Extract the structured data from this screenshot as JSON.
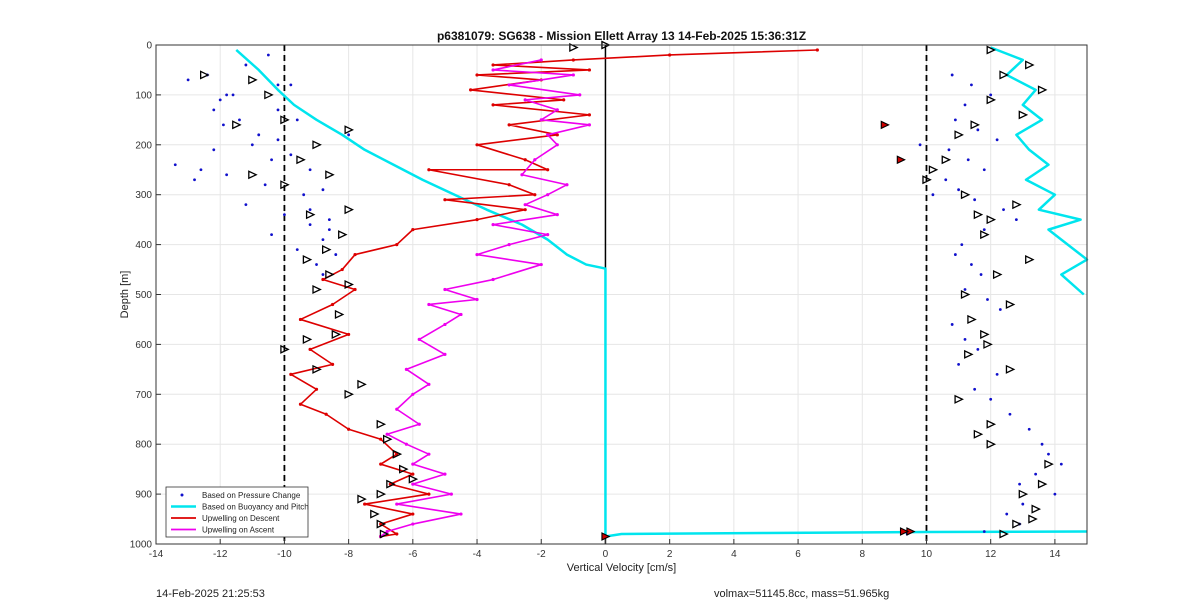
{
  "chart_data": {
    "type": "scatter",
    "title": "p6381079: SG638 - Mission Ellett Array 13 14-Feb-2025 15:36:31Z",
    "xlabel": "Vertical Velocity [cm/s]",
    "ylabel": "Depth [m]",
    "xlim": [
      -14,
      15
    ],
    "ylim": [
      0,
      1000
    ],
    "y_reversed": true,
    "grid": true,
    "x_ticks": [
      -14,
      -12,
      -10,
      -8,
      -6,
      -4,
      -2,
      0,
      2,
      4,
      6,
      8,
      10,
      12,
      14
    ],
    "y_ticks": [
      0,
      100,
      200,
      300,
      400,
      500,
      600,
      700,
      800,
      900,
      1000
    ],
    "reference_lines": {
      "dashed_x": [
        -10,
        10
      ],
      "solid_x": [
        0
      ]
    },
    "legend_position": "bottom-left",
    "legend": [
      "Based on Pressure Change",
      "Based on Buoyancy and Pitch",
      "Upwelling on Descent",
      "Upwelling on Ascent"
    ],
    "series": [
      {
        "name": "Based on Buoyancy and Pitch",
        "color": "#00e5ee",
        "style": "line",
        "x": [
          -11.5,
          -10.8,
          -10.2,
          -9.7,
          -9.0,
          -8.2,
          -7.5,
          -6.6,
          -5.7,
          -4.7,
          -3.7,
          -2.6,
          -1.8,
          -1.2,
          -0.6,
          0,
          0,
          0,
          0,
          0.5,
          5,
          10,
          15
        ],
        "y": [
          10,
          50,
          90,
          120,
          150,
          180,
          210,
          240,
          270,
          300,
          330,
          360,
          390,
          420,
          440,
          448,
          600,
          800,
          985,
          980,
          978,
          976,
          975
        ]
      },
      {
        "name": "Based on Buoyancy and Pitch (ascent)",
        "color": "#00e5ee",
        "style": "line",
        "x": [
          12.0,
          13.0,
          12.5,
          13.4,
          13.0,
          13.6,
          12.8,
          13.2,
          13.8,
          13.1,
          14.0,
          13.5,
          14.8,
          13.8,
          14.4,
          15.0,
          14.2,
          14.9
        ],
        "y": [
          5,
          30,
          60,
          90,
          120,
          150,
          180,
          210,
          240,
          270,
          300,
          330,
          350,
          370,
          400,
          430,
          460,
          500
        ]
      },
      {
        "name": "Upwelling on Descent",
        "color": "#dd0000",
        "style": "line-dots",
        "x": [
          6.6,
          2.0,
          -1.0,
          -3.5,
          -0.5,
          -4.0,
          -2.0,
          -4.2,
          -1.3,
          -3.5,
          -0.5,
          -3.0,
          -1.5,
          -4.0,
          -2.5,
          -1.8,
          -5.5,
          -3.0,
          -2.2,
          -5.0,
          -2.5,
          -4.0,
          -6.0,
          -6.5,
          -7.8,
          -8.2,
          -8.8,
          -7.8,
          -8.5,
          -9.5,
          -8.0,
          -9.2,
          -8.5,
          -9.8,
          -9.0,
          -9.5,
          -8.7,
          -8.0,
          -7.0,
          -6.5,
          -7.0,
          -6.0,
          -6.7,
          -5.5,
          -7.5,
          -6.0,
          -7.0,
          -6.5,
          -7.0
        ],
        "y": [
          10,
          20,
          30,
          40,
          50,
          60,
          70,
          90,
          110,
          120,
          140,
          160,
          180,
          200,
          230,
          250,
          250,
          280,
          300,
          310,
          330,
          350,
          370,
          400,
          420,
          450,
          470,
          490,
          520,
          550,
          580,
          610,
          640,
          660,
          690,
          720,
          740,
          770,
          790,
          820,
          840,
          860,
          880,
          900,
          920,
          940,
          960,
          980,
          985
        ]
      },
      {
        "name": "Upwelling on Ascent",
        "color": "#ee00ee",
        "style": "line-dots",
        "x": [
          -2.0,
          -3.5,
          -1.0,
          -3.0,
          -0.8,
          -2.5,
          -1.5,
          -2.0,
          -0.5,
          -1.8,
          -1.5,
          -2.2,
          -2.6,
          -1.2,
          -1.8,
          -2.5,
          -1.5,
          -3.5,
          -1.8,
          -3.0,
          -4.0,
          -2.0,
          -3.5,
          -5.0,
          -4.0,
          -5.5,
          -4.5,
          -5.0,
          -5.8,
          -5.0,
          -6.2,
          -5.5,
          -6.0,
          -6.5,
          -5.8,
          -6.8,
          -6.2,
          -5.5,
          -6.0,
          -5.0,
          -6.0,
          -4.8,
          -6.5,
          -4.5,
          -6.0,
          -6.8,
          -7.0
        ],
        "y": [
          30,
          50,
          60,
          80,
          100,
          110,
          130,
          150,
          160,
          180,
          200,
          230,
          260,
          280,
          300,
          320,
          340,
          360,
          380,
          400,
          420,
          440,
          470,
          490,
          510,
          520,
          540,
          560,
          590,
          620,
          650,
          680,
          700,
          730,
          760,
          780,
          800,
          820,
          840,
          860,
          880,
          900,
          920,
          940,
          960,
          975,
          985
        ]
      },
      {
        "name": "Based on Pressure Change",
        "color": "#1010cc",
        "style": "dots",
        "x": [
          -10.5,
          -11.2,
          -12.4,
          -9.8,
          -11.6,
          -12.0,
          -10.2,
          -9.6,
          -11.9,
          -10.8,
          -11.0,
          -12.2,
          -10.4,
          -9.2,
          -11.8,
          -12.8,
          -10.6,
          -9.4,
          -11.2,
          -12.6,
          -13.4,
          -10.0,
          -8.6,
          -9.2,
          -10.4,
          -8.8,
          -9.6,
          -8.4,
          -9.0,
          -8.8,
          -9.2,
          -8.6,
          -12.2,
          -11.4,
          -13.0,
          -10.2,
          -9.8,
          -8.8,
          -8.0,
          -10.2,
          -11.8
        ],
        "y": [
          20,
          40,
          60,
          80,
          100,
          110,
          130,
          150,
          160,
          180,
          200,
          210,
          230,
          250,
          260,
          270,
          280,
          300,
          320,
          250,
          240,
          340,
          350,
          360,
          380,
          390,
          410,
          420,
          440,
          460,
          330,
          370,
          130,
          150,
          70,
          190,
          220,
          290,
          180,
          80,
          100
        ]
      },
      {
        "name": "Based on Pressure Change (ascent)",
        "color": "#1010cc",
        "style": "dots",
        "x": [
          10.8,
          11.4,
          12.0,
          11.2,
          10.9,
          11.6,
          12.2,
          10.7,
          11.3,
          11.8,
          10.6,
          11.0,
          11.5,
          12.4,
          12.8,
          11.8,
          11.1,
          10.9,
          11.4,
          11.7,
          11.2,
          11.9,
          12.3,
          10.8,
          11.2,
          11.6,
          11.0,
          12.2,
          11.5,
          12.0,
          12.6,
          13.2,
          13.6,
          13.8,
          14.2,
          13.4,
          12.9,
          14.0,
          13.0,
          12.5,
          12.9,
          11.8,
          9.4,
          9.8,
          10.2
        ],
        "y": [
          60,
          80,
          100,
          120,
          150,
          170,
          190,
          210,
          230,
          250,
          270,
          290,
          310,
          330,
          350,
          370,
          400,
          420,
          440,
          460,
          490,
          510,
          530,
          560,
          590,
          610,
          640,
          660,
          690,
          710,
          740,
          770,
          800,
          820,
          840,
          860,
          880,
          900,
          920,
          940,
          960,
          975,
          980,
          200,
          300
        ]
      },
      {
        "name": "Ascent markers",
        "color": "#000000",
        "style": "triangles",
        "x": [
          -1.0,
          0,
          -12.5,
          -11.0,
          -10.5,
          -10.0,
          -11.5,
          -9.0,
          -8.0,
          -9.5,
          -8.6,
          -11.0,
          -10.0,
          -8.0,
          -9.2,
          -8.2,
          -8.7,
          -9.3,
          -8.6,
          -8.0,
          -9.0,
          -8.3,
          -10.0,
          -9.3,
          -8.4,
          -9.0,
          -7.6,
          -8.0,
          -7.0,
          -6.8,
          -6.5,
          -6.3,
          -6.0,
          -6.7,
          -7.0,
          -7.6,
          -7.2,
          -7.0,
          -6.9
        ],
        "y": [
          5,
          0,
          60,
          70,
          100,
          150,
          160,
          200,
          170,
          230,
          260,
          260,
          280,
          330,
          340,
          380,
          410,
          430,
          460,
          480,
          490,
          540,
          610,
          590,
          580,
          650,
          680,
          700,
          760,
          790,
          820,
          850,
          870,
          880,
          900,
          910,
          940,
          960,
          980
        ]
      },
      {
        "name": "Descent markers",
        "color": "#000000",
        "style": "triangles",
        "x": [
          12.0,
          13.2,
          12.4,
          13.6,
          12.0,
          13.0,
          11.5,
          11.0,
          10.6,
          10.2,
          10.0,
          11.2,
          12.8,
          11.6,
          12.0,
          11.8,
          13.2,
          12.2,
          11.2,
          12.6,
          11.4,
          11.8,
          11.9,
          11.3,
          12.6,
          11.0,
          12.0,
          11.6,
          12.0,
          13.8,
          13.6,
          13.0,
          13.4,
          13.3,
          12.8,
          12.4
        ],
        "y": [
          10,
          40,
          60,
          90,
          110,
          140,
          160,
          180,
          230,
          250,
          270,
          300,
          320,
          340,
          350,
          380,
          430,
          460,
          500,
          520,
          550,
          580,
          600,
          620,
          650,
          710,
          760,
          780,
          800,
          840,
          880,
          900,
          930,
          950,
          960,
          980
        ]
      },
      {
        "name": "Special points",
        "color": "#cc0000",
        "style": "filled-triangles",
        "x": [
          8.7,
          9.2,
          9.5,
          0,
          9.3
        ],
        "y": [
          160,
          230,
          975,
          985,
          975
        ]
      }
    ]
  },
  "footer": {
    "timestamp": "14-Feb-2025 21:25:53",
    "vol_mass": "volmax=51145.8cc, mass=51.965kg"
  }
}
